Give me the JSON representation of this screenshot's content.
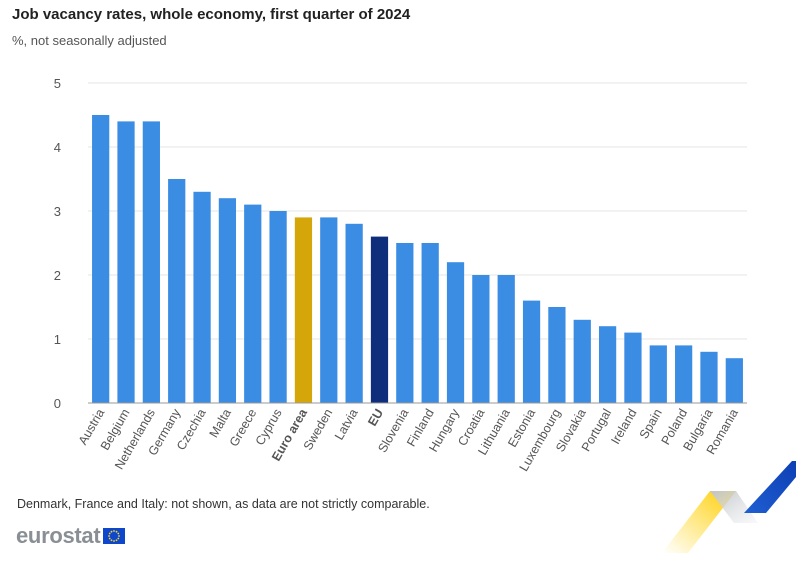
{
  "header": {
    "title": "Job vacancy rates, whole economy, first quarter of 2024",
    "subtitle": "%, not seasonally adjusted"
  },
  "footer": {
    "note": "Denmark, France and Italy: not shown, as data are not strictly comparable.",
    "logo_text": "eurostat"
  },
  "colors": {
    "country": "#3b8ce3",
    "euro_area": "#d4a60a",
    "eu": "#0e2d7a",
    "grid": "#e6e6e6",
    "axis": "#999999"
  },
  "chart_data": {
    "type": "bar",
    "title": "Job vacancy rates, whole economy, first quarter of 2024",
    "subtitle": "%, not seasonally adjusted",
    "ylim": [
      0,
      5
    ],
    "yticks": [
      0,
      1,
      2,
      3,
      4,
      5
    ],
    "grid": true,
    "categories": [
      "Austria",
      "Belgium",
      "Netherlands",
      "Germany",
      "Czechia",
      "Malta",
      "Greece",
      "Cyprus",
      "Euro area",
      "Sweden",
      "Latvia",
      "EU",
      "Slovenia",
      "Finland",
      "Hungary",
      "Croatia",
      "Lithuania",
      "Estonia",
      "Luxembourg",
      "Slovakia",
      "Portugal",
      "Ireland",
      "Spain",
      "Poland",
      "Bulgaria",
      "Romania"
    ],
    "values": [
      4.5,
      4.4,
      4.4,
      3.5,
      3.3,
      3.2,
      3.1,
      3.0,
      2.9,
      2.9,
      2.8,
      2.6,
      2.5,
      2.5,
      2.2,
      2.0,
      2.0,
      1.6,
      1.5,
      1.3,
      1.2,
      1.1,
      0.9,
      0.9,
      0.8,
      0.7
    ],
    "highlight": {
      "Euro area": "euro_area",
      "EU": "eu"
    },
    "bold_labels": [
      "Euro area",
      "EU"
    ]
  }
}
